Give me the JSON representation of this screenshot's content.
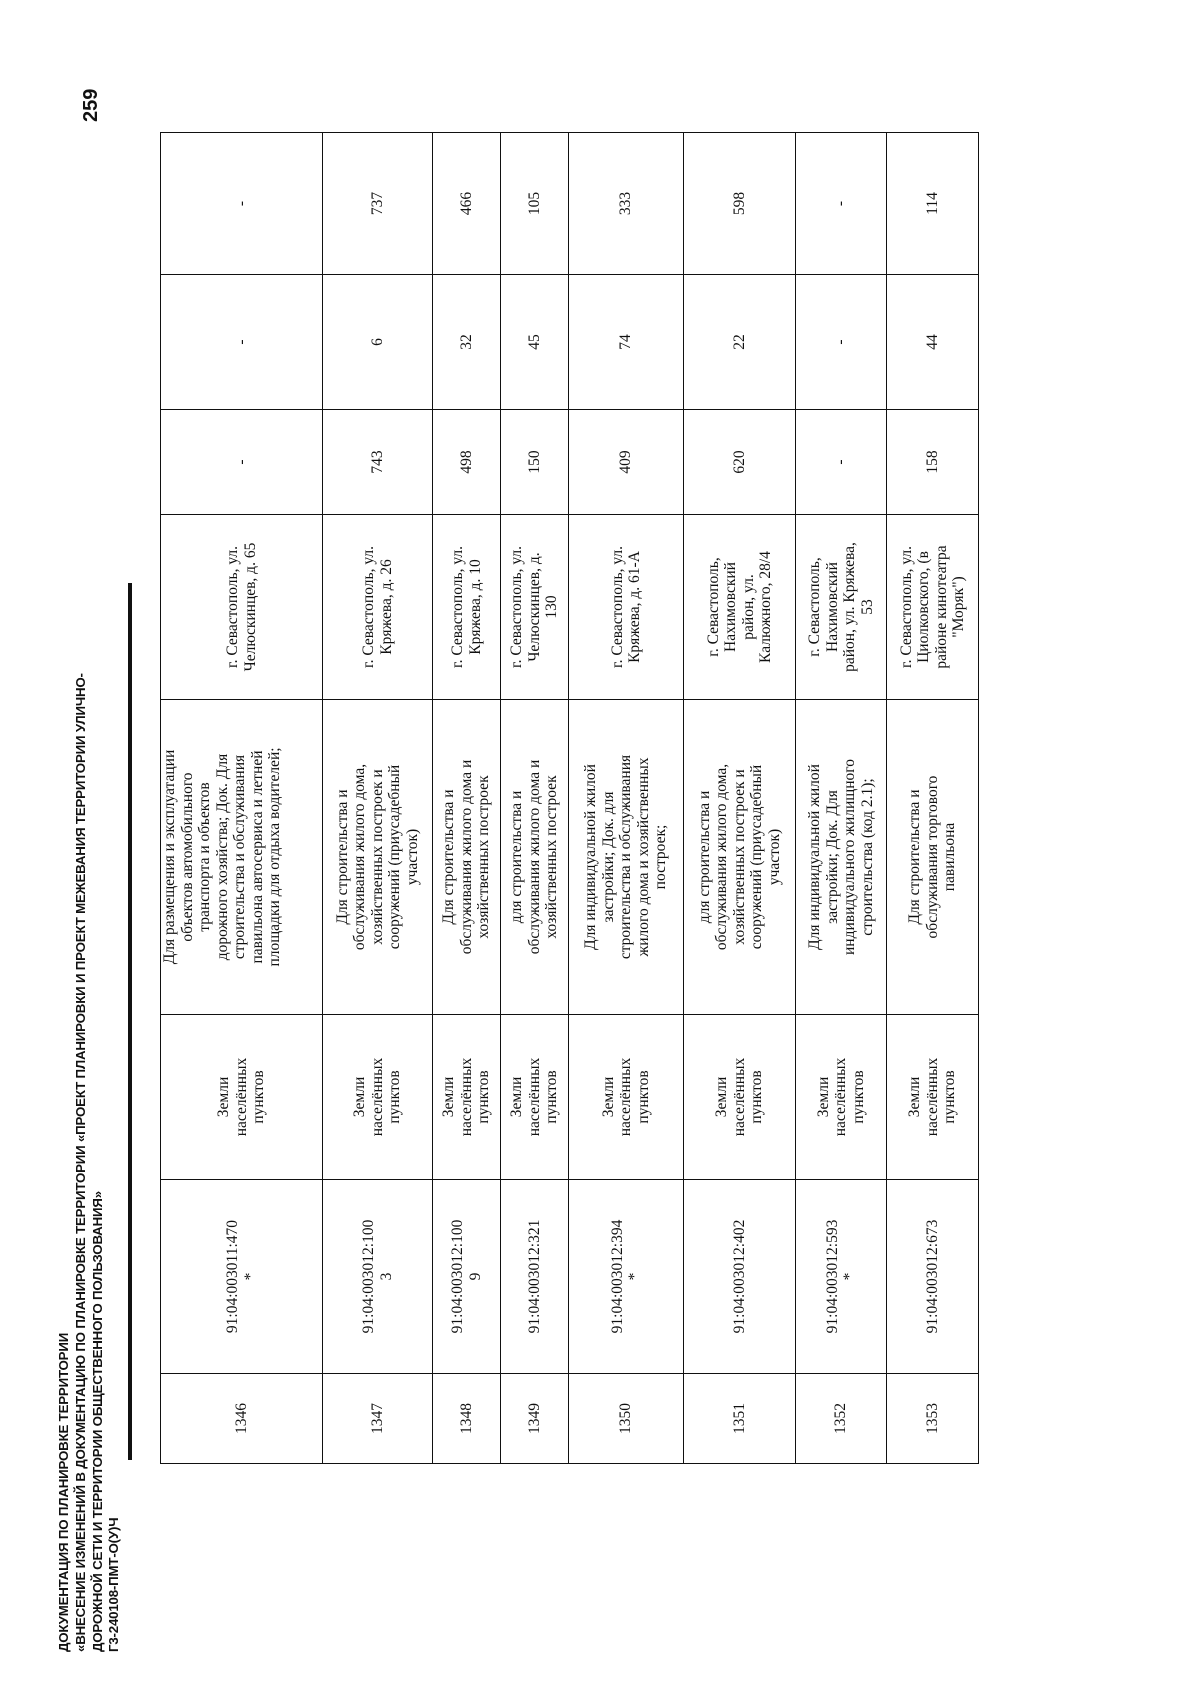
{
  "header": {
    "lines": [
      "ДОКУМЕНТАЦИЯ ПО ПЛАНИРОВКЕ ТЕРРИТОРИИ",
      "«ВНЕСЕНИЕ ИЗМЕНЕНИЙ В ДОКУМЕНТАЦИЮ ПО ПЛАНИРОВКЕ ТЕРРИТОРИИ «ПРОЕКТ ПЛАНИРОВКИ И ПРОЕКТ МЕЖЕВАНИЯ ТЕРРИТОРИИ УЛИЧНО-",
      "ДОРОЖНОЙ СЕТИ И ТЕРРИТОРИИ ОБЩЕСТВЕННОГО ПОЛЬЗОВАНИЯ»",
      "Г3-240108-ПМТ-О(У)Ч"
    ],
    "page_number": "259"
  },
  "table": {
    "rows": [
      {
        "num": "1346",
        "cadastral": "91:04:003011:470\n*",
        "category": "Земли\nнаселённых\nпунктов",
        "purpose": "Для размещения и эксплуатации\nобъектов автомобильного\nтранспорта и объектов\nдорожного хозяйства; Док. Для\nстроительства и обслуживания\nпавильона автосервиса и летней\nплощадки для отдыха водителей;",
        "address": "г. Севастополь, ул.\nЧелюскинцев, д. 65",
        "area_total": "-",
        "area_a": "-",
        "area_b": "-"
      },
      {
        "num": "1347",
        "cadastral": "91:04:003012:100\n3",
        "category": "Земли\nнаселённых\nпунктов",
        "purpose": "Для строительства и\nобслуживания жилого дома,\nхозяйственных построек и\nсооружений (приусадебный\nучасток)",
        "address": "г. Севастополь, ул.\nКряжева, д. 26",
        "area_total": "743",
        "area_a": "6",
        "area_b": "737"
      },
      {
        "num": "1348",
        "cadastral": "91:04:003012:100\n9",
        "category": "Земли\nнаселённых\nпунктов",
        "purpose": "Для строительства и\nобслуживания жилого дома и\nхозяйственных построек",
        "address": "г. Севастополь, ул.\nКряжева, д. 10",
        "area_total": "498",
        "area_a": "32",
        "area_b": "466"
      },
      {
        "num": "1349",
        "cadastral": "91:04:003012:321",
        "category": "Земли\nнаселённых\nпунктов",
        "purpose": "для строительства и\nобслуживания жилого дома и\nхозяйственных построек",
        "address": "г. Севастополь, ул.\nЧелюскинцев, д.\n130",
        "area_total": "150",
        "area_a": "45",
        "area_b": "105"
      },
      {
        "num": "1350",
        "cadastral": "91:04:003012:394\n*",
        "category": "Земли\nнаселённых\nпунктов",
        "purpose": "Для индивидуальной жилой\nзастройки; Док. для\nстроительства и обслуживания\nжилого дома и хозяйственных\nпостроек;",
        "address": "г. Севастополь, ул.\nКряжева, д. 61-А",
        "area_total": "409",
        "area_a": "74",
        "area_b": "333"
      },
      {
        "num": "1351",
        "cadastral": "91:04:003012:402",
        "category": "Земли\nнаселённых\nпунктов",
        "purpose": "для строительства и\nобслуживания жилого дома,\nхозяйственных построек и\nсооружений (приусадебный\nучасток)",
        "address": "г. Севастополь,\nНахимовский\nрайон, ул.\nКалюжного, 28/4",
        "area_total": "620",
        "area_a": "22",
        "area_b": "598"
      },
      {
        "num": "1352",
        "cadastral": "91:04:003012:593\n*",
        "category": "Земли\nнаселённых\nпунктов",
        "purpose": "Для индивидуальной жилой\nзастройки; Док. Для\nиндивидуального жилищного\nстроительства (код 2.1);",
        "address": "г. Севастополь,\nНахимовский\nрайон, ул. Кряжева,\n53",
        "area_total": "-",
        "area_a": "-",
        "area_b": "-"
      },
      {
        "num": "1353",
        "cadastral": "91:04:003012:673",
        "category": "Земли\nнаселённых\nпунктов",
        "purpose": "Для строительства и\nобслуживания торгового\nпавильона",
        "address": "г. Севастополь, ул.\nЦиолковского, (в\nрайоне кинотеатра\n\"Моряк\")",
        "area_total": "158",
        "area_a": "44",
        "area_b": "114"
      }
    ]
  }
}
